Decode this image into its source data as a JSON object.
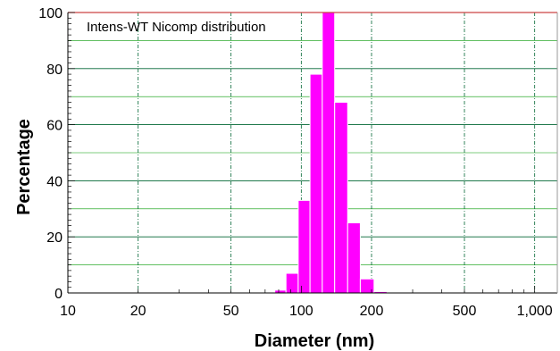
{
  "chart_data": {
    "type": "bar",
    "title": "Intens-WT Nicomp distribution",
    "xlabel": "Diameter (nm)",
    "ylabel": "Percentage",
    "x_scale": "log",
    "xlim": [
      10,
      1250
    ],
    "ylim": [
      0,
      100
    ],
    "x_ticks": [
      {
        "value": 10,
        "label": "10"
      },
      {
        "value": 20,
        "label": "20"
      },
      {
        "value": 50,
        "label": "50"
      },
      {
        "value": 100,
        "label": "100"
      },
      {
        "value": 200,
        "label": "200"
      },
      {
        "value": 500,
        "label": "500"
      },
      {
        "value": 1000,
        "label": "1,000"
      }
    ],
    "y_ticks": [
      {
        "value": 0,
        "label": "0"
      },
      {
        "value": 20,
        "label": "20"
      },
      {
        "value": 40,
        "label": "40"
      },
      {
        "value": 60,
        "label": "60"
      },
      {
        "value": 80,
        "label": "80"
      },
      {
        "value": 100,
        "label": "100"
      }
    ],
    "bins": [
      {
        "x0": 77,
        "x1": 86,
        "value": 1
      },
      {
        "x0": 86,
        "x1": 97,
        "value": 7
      },
      {
        "x0": 97,
        "x1": 109,
        "value": 33
      },
      {
        "x0": 109,
        "x1": 123,
        "value": 78
      },
      {
        "x0": 123,
        "x1": 139,
        "value": 100
      },
      {
        "x0": 139,
        "x1": 158,
        "value": 68
      },
      {
        "x0": 158,
        "x1": 179,
        "value": 25
      },
      {
        "x0": 179,
        "x1": 205,
        "value": 5
      },
      {
        "x0": 205,
        "x1": 233,
        "value": 0.5
      }
    ],
    "grid": true,
    "colors": {
      "bar": "#ff00ff",
      "bar_edge": "#ffffff",
      "grid_minor": "#009900",
      "grid_major": "#006633",
      "frame_top": "#cc4444",
      "frame": "#000000",
      "background": "#ffffff"
    }
  }
}
